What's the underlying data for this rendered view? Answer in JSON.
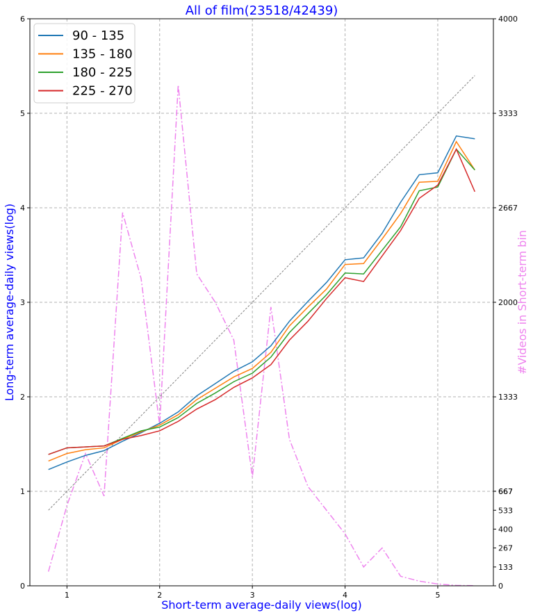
{
  "chart_data": {
    "type": "line",
    "title": "All of film(23518/42439)",
    "xlabel": "Short-term average-daily views(log)",
    "ylabel": "Long-term average-daily views(log)",
    "y2label": "#Videos in Short-term bin",
    "xlim": [
      0.6,
      5.6
    ],
    "ylim": [
      0,
      6
    ],
    "y2lim": [
      0,
      4000
    ],
    "xticks": [
      "1",
      "2",
      "3",
      "4",
      "5"
    ],
    "yticks": [
      "0",
      "1",
      "2",
      "3",
      "4",
      "5",
      "6"
    ],
    "y2ticks": [
      "0",
      "133",
      "267",
      "400",
      "533",
      "667",
      "667",
      "1333",
      "2000",
      "2667",
      "3333",
      "4000"
    ],
    "y2tick_values": [
      0,
      133,
      267,
      400,
      533,
      667,
      667,
      1333,
      2000,
      2667,
      3333,
      4000
    ],
    "grid": true,
    "legend_position": "top-left",
    "x": [
      0.8,
      1.0,
      1.2,
      1.4,
      1.6,
      1.8,
      2.0,
      2.2,
      2.4,
      2.6,
      2.8,
      3.0,
      3.2,
      3.4,
      3.6,
      3.8,
      4.0,
      4.2,
      4.4,
      4.6,
      4.8,
      5.0,
      5.2,
      5.4
    ],
    "series": [
      {
        "name": "90 - 135",
        "color": "#1f77b4",
        "values": [
          1.23,
          1.31,
          1.38,
          1.43,
          1.53,
          1.62,
          1.72,
          1.84,
          2.01,
          2.14,
          2.27,
          2.37,
          2.54,
          2.8,
          3.01,
          3.21,
          3.45,
          3.47,
          3.73,
          4.06,
          4.35,
          4.37,
          4.76,
          4.73
        ]
      },
      {
        "name": "135 - 180",
        "color": "#ff7f0e",
        "values": [
          1.32,
          1.4,
          1.44,
          1.46,
          1.55,
          1.63,
          1.7,
          1.81,
          1.97,
          2.09,
          2.21,
          2.3,
          2.47,
          2.75,
          2.95,
          3.14,
          3.4,
          3.41,
          3.67,
          3.94,
          4.27,
          4.28,
          4.7,
          4.4
        ]
      },
      {
        "name": "180 - 225",
        "color": "#2ca02c",
        "values": [
          1.39,
          1.46,
          1.47,
          1.48,
          1.56,
          1.64,
          1.68,
          1.78,
          1.93,
          2.04,
          2.16,
          2.25,
          2.42,
          2.68,
          2.88,
          3.08,
          3.31,
          3.3,
          3.55,
          3.8,
          4.18,
          4.22,
          4.62,
          4.4
        ]
      },
      {
        "name": "225 - 270",
        "color": "#d62728",
        "values": [
          1.39,
          1.46,
          1.47,
          1.48,
          1.55,
          1.59,
          1.64,
          1.74,
          1.87,
          1.97,
          2.1,
          2.2,
          2.34,
          2.6,
          2.8,
          3.04,
          3.26,
          3.22,
          3.49,
          3.76,
          4.1,
          4.24,
          4.62,
          4.17
        ]
      }
    ],
    "count_series": {
      "color": "#ee82ee",
      "style": "dash-dot",
      "values": [
        100,
        567,
        933,
        633,
        2633,
        2167,
        1133,
        3533,
        2200,
        2000,
        1733,
        767,
        1967,
        1033,
        700,
        533,
        367,
        133,
        267,
        67,
        33,
        13,
        3,
        1
      ]
    },
    "reference_line": {
      "style": "dashed",
      "color": "#808080",
      "x": [
        0.8,
        5.4
      ],
      "y": [
        0.8,
        5.4
      ]
    }
  }
}
